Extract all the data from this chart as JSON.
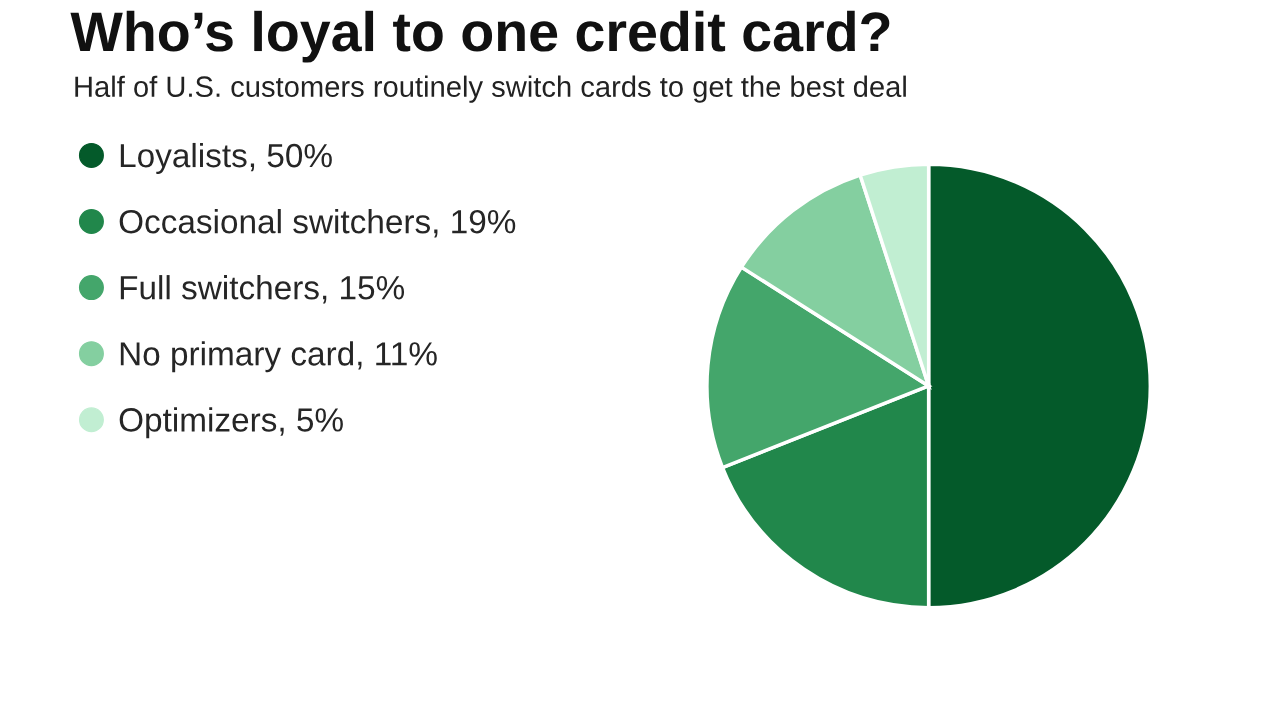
{
  "chart_data": {
    "type": "pie",
    "title": "Who’s loyal to one credit card?",
    "subtitle": "Half of U.S. customers routinely switch cards to get the best deal",
    "categories": [
      "Loyalists",
      "Occasional switchers",
      "Full switchers",
      "No primary card",
      "Optimizers"
    ],
    "values": [
      50,
      19,
      15,
      11,
      5
    ],
    "value_labels": [
      "50%",
      "19%",
      "15%",
      "11%",
      "5%"
    ],
    "colors": [
      "#045a2a",
      "#21874b",
      "#44a66b",
      "#84cfa0",
      "#c1eed2"
    ],
    "legend": "left"
  }
}
